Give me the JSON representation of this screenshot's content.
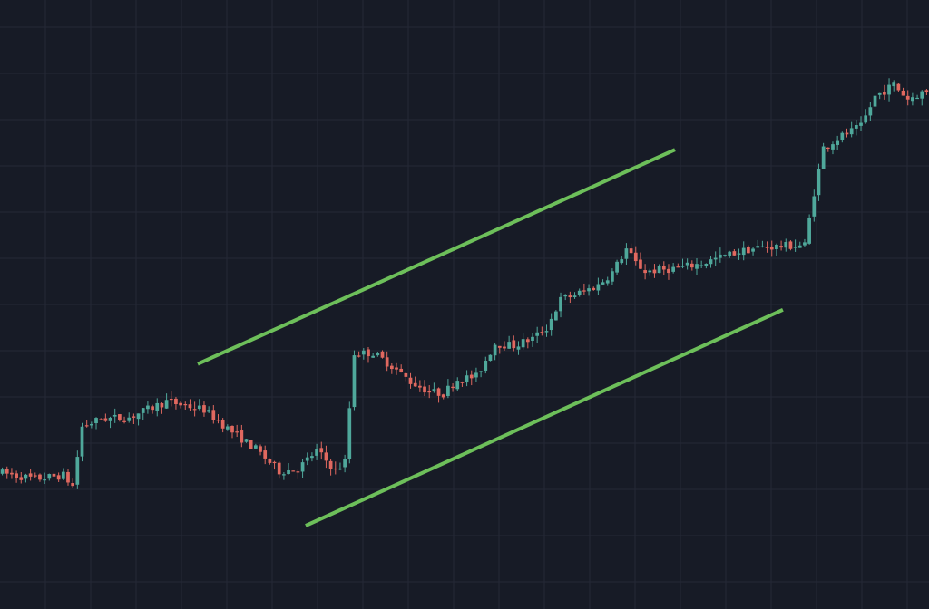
{
  "chart_data": {
    "type": "candlestick",
    "title": "",
    "xlabel": "",
    "ylabel": "",
    "grid": true,
    "legend": "none",
    "ylim": [
      0,
      100
    ],
    "colors": {
      "background": "#171b26",
      "grid": "#242836",
      "up": "#4fa89b",
      "down": "#e0685f",
      "trendline": "#6dbf5a"
    },
    "trend_channel": [
      {
        "name": "upper",
        "start": {
          "x": 42,
          "y": 36.7
        },
        "end": {
          "x": 143,
          "y": 77.9
        }
      },
      {
        "name": "lower",
        "start": {
          "x": 65,
          "y": 5.4
        },
        "end": {
          "x": 166,
          "y": 46.9
        }
      }
    ],
    "price_path": [
      [
        0,
        15.6
      ],
      [
        8,
        14.3
      ],
      [
        14,
        15.0
      ],
      [
        16,
        12.9
      ],
      [
        18,
        24.4
      ],
      [
        22,
        25.9
      ],
      [
        28,
        26.2
      ],
      [
        36,
        29.3
      ],
      [
        44,
        27.7
      ],
      [
        50,
        23.4
      ],
      [
        55,
        20.1
      ],
      [
        60,
        15.8
      ],
      [
        64,
        16.2
      ],
      [
        68,
        19.8
      ],
      [
        72,
        15.9
      ],
      [
        74,
        17.6
      ],
      [
        76,
        38.6
      ],
      [
        80,
        38.7
      ],
      [
        84,
        36.2
      ],
      [
        88,
        33.1
      ],
      [
        92,
        31.2
      ],
      [
        95,
        30.8
      ],
      [
        98,
        33.6
      ],
      [
        102,
        34.1
      ],
      [
        106,
        40.5
      ],
      [
        110,
        40.1
      ],
      [
        114,
        41.5
      ],
      [
        117,
        43.5
      ],
      [
        120,
        49.0
      ],
      [
        124,
        50.3
      ],
      [
        128,
        51.8
      ],
      [
        131,
        54.3
      ],
      [
        134,
        58.8
      ],
      [
        136,
        56.1
      ],
      [
        138,
        54.5
      ],
      [
        142,
        54.8
      ],
      [
        146,
        55.3
      ],
      [
        150,
        56.0
      ],
      [
        154,
        57.2
      ],
      [
        158,
        58.3
      ],
      [
        162,
        59.1
      ],
      [
        168,
        59.4
      ],
      [
        172,
        59.6
      ],
      [
        174,
        69.8
      ],
      [
        176,
        78.4
      ],
      [
        180,
        80.7
      ],
      [
        184,
        82.5
      ],
      [
        187,
        88.3
      ],
      [
        191,
        90.6
      ],
      [
        194,
        87.9
      ],
      [
        197,
        89.1
      ]
    ],
    "candle_count": 198
  }
}
